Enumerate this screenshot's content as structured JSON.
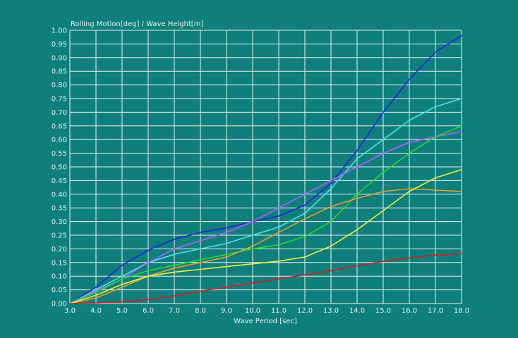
{
  "chart_data": {
    "type": "line",
    "title": "",
    "ylabel": "Rolling Motion[deg] / Wave Height[m]",
    "xlabel": "Wave Period [sec]",
    "xlim": [
      3.0,
      18.0
    ],
    "ylim": [
      0.0,
      1.0
    ],
    "grid": true,
    "x_ticks": [
      3.0,
      4.0,
      5.0,
      6.0,
      7.0,
      8.0,
      9.0,
      10.0,
      11.0,
      12.0,
      13.0,
      14.0,
      15.0,
      16.0,
      17.0,
      18.0
    ],
    "x_tick_labels": [
      "3.0",
      "4.0",
      "5.0",
      "6.0",
      "7.0",
      "8.0",
      "9.0",
      "10.0",
      "11.0",
      "12.0",
      "13.0",
      "14.0",
      "15.0",
      "16.0",
      "17.0",
      "18.0"
    ],
    "y_ticks": [
      0,
      0.05,
      0.1,
      0.15,
      0.2,
      0.25,
      0.3,
      0.35,
      0.4,
      0.45,
      0.5,
      0.55,
      0.6,
      0.65,
      0.7,
      0.75,
      0.8,
      0.85,
      0.9,
      0.95,
      1.0
    ],
    "y_tick_labels": [
      "0.00",
      "0.05",
      "0.10",
      "0.15",
      "0.20",
      "0.25",
      "0.30",
      "0.35",
      "0.40",
      "0.45",
      "0.50",
      "0.55",
      "0.60",
      "0.65",
      "0.70",
      "0.75",
      "0.80",
      "0.85",
      "0.90",
      "0.95",
      "1.00"
    ],
    "x": [
      3,
      4,
      5,
      6,
      7,
      8,
      9,
      10,
      11,
      12,
      13,
      14,
      15,
      16,
      17,
      18
    ],
    "series": [
      {
        "color": "#2222dd",
        "values": [
          0.0,
          0.06,
          0.14,
          0.195,
          0.235,
          0.26,
          0.277,
          0.3,
          0.32,
          0.36,
          0.44,
          0.56,
          0.7,
          0.82,
          0.92,
          0.98
        ]
      },
      {
        "color": "#44e6e6",
        "values": [
          0.0,
          0.05,
          0.1,
          0.15,
          0.18,
          0.2,
          0.22,
          0.25,
          0.28,
          0.33,
          0.42,
          0.53,
          0.6,
          0.67,
          0.72,
          0.75
        ]
      },
      {
        "color": "#b060ff",
        "values": [
          0.0,
          0.045,
          0.09,
          0.15,
          0.2,
          0.23,
          0.26,
          0.3,
          0.35,
          0.4,
          0.45,
          0.5,
          0.55,
          0.59,
          0.61,
          0.63
        ]
      },
      {
        "color": "#22dd22",
        "values": [
          0.0,
          0.04,
          0.09,
          0.12,
          0.14,
          0.16,
          0.18,
          0.2,
          0.215,
          0.245,
          0.3,
          0.4,
          0.48,
          0.55,
          0.61,
          0.65
        ]
      },
      {
        "color": "#e0a030",
        "values": [
          0.0,
          0.02,
          0.06,
          0.1,
          0.13,
          0.15,
          0.17,
          0.21,
          0.26,
          0.31,
          0.355,
          0.385,
          0.41,
          0.42,
          0.415,
          0.41
        ]
      },
      {
        "color": "#f0f040",
        "values": [
          0.0,
          0.03,
          0.07,
          0.1,
          0.115,
          0.125,
          0.135,
          0.145,
          0.155,
          0.17,
          0.21,
          0.27,
          0.34,
          0.41,
          0.46,
          0.49
        ]
      },
      {
        "color": "#cc2222",
        "values": [
          0.0,
          0.002,
          0.006,
          0.015,
          0.028,
          0.045,
          0.06,
          0.075,
          0.09,
          0.105,
          0.12,
          0.138,
          0.154,
          0.167,
          0.177,
          0.182
        ]
      }
    ],
    "colors": {
      "background": "#0f7f7c",
      "grid": "#e8f0f0",
      "text": "#e6f2f2"
    }
  }
}
